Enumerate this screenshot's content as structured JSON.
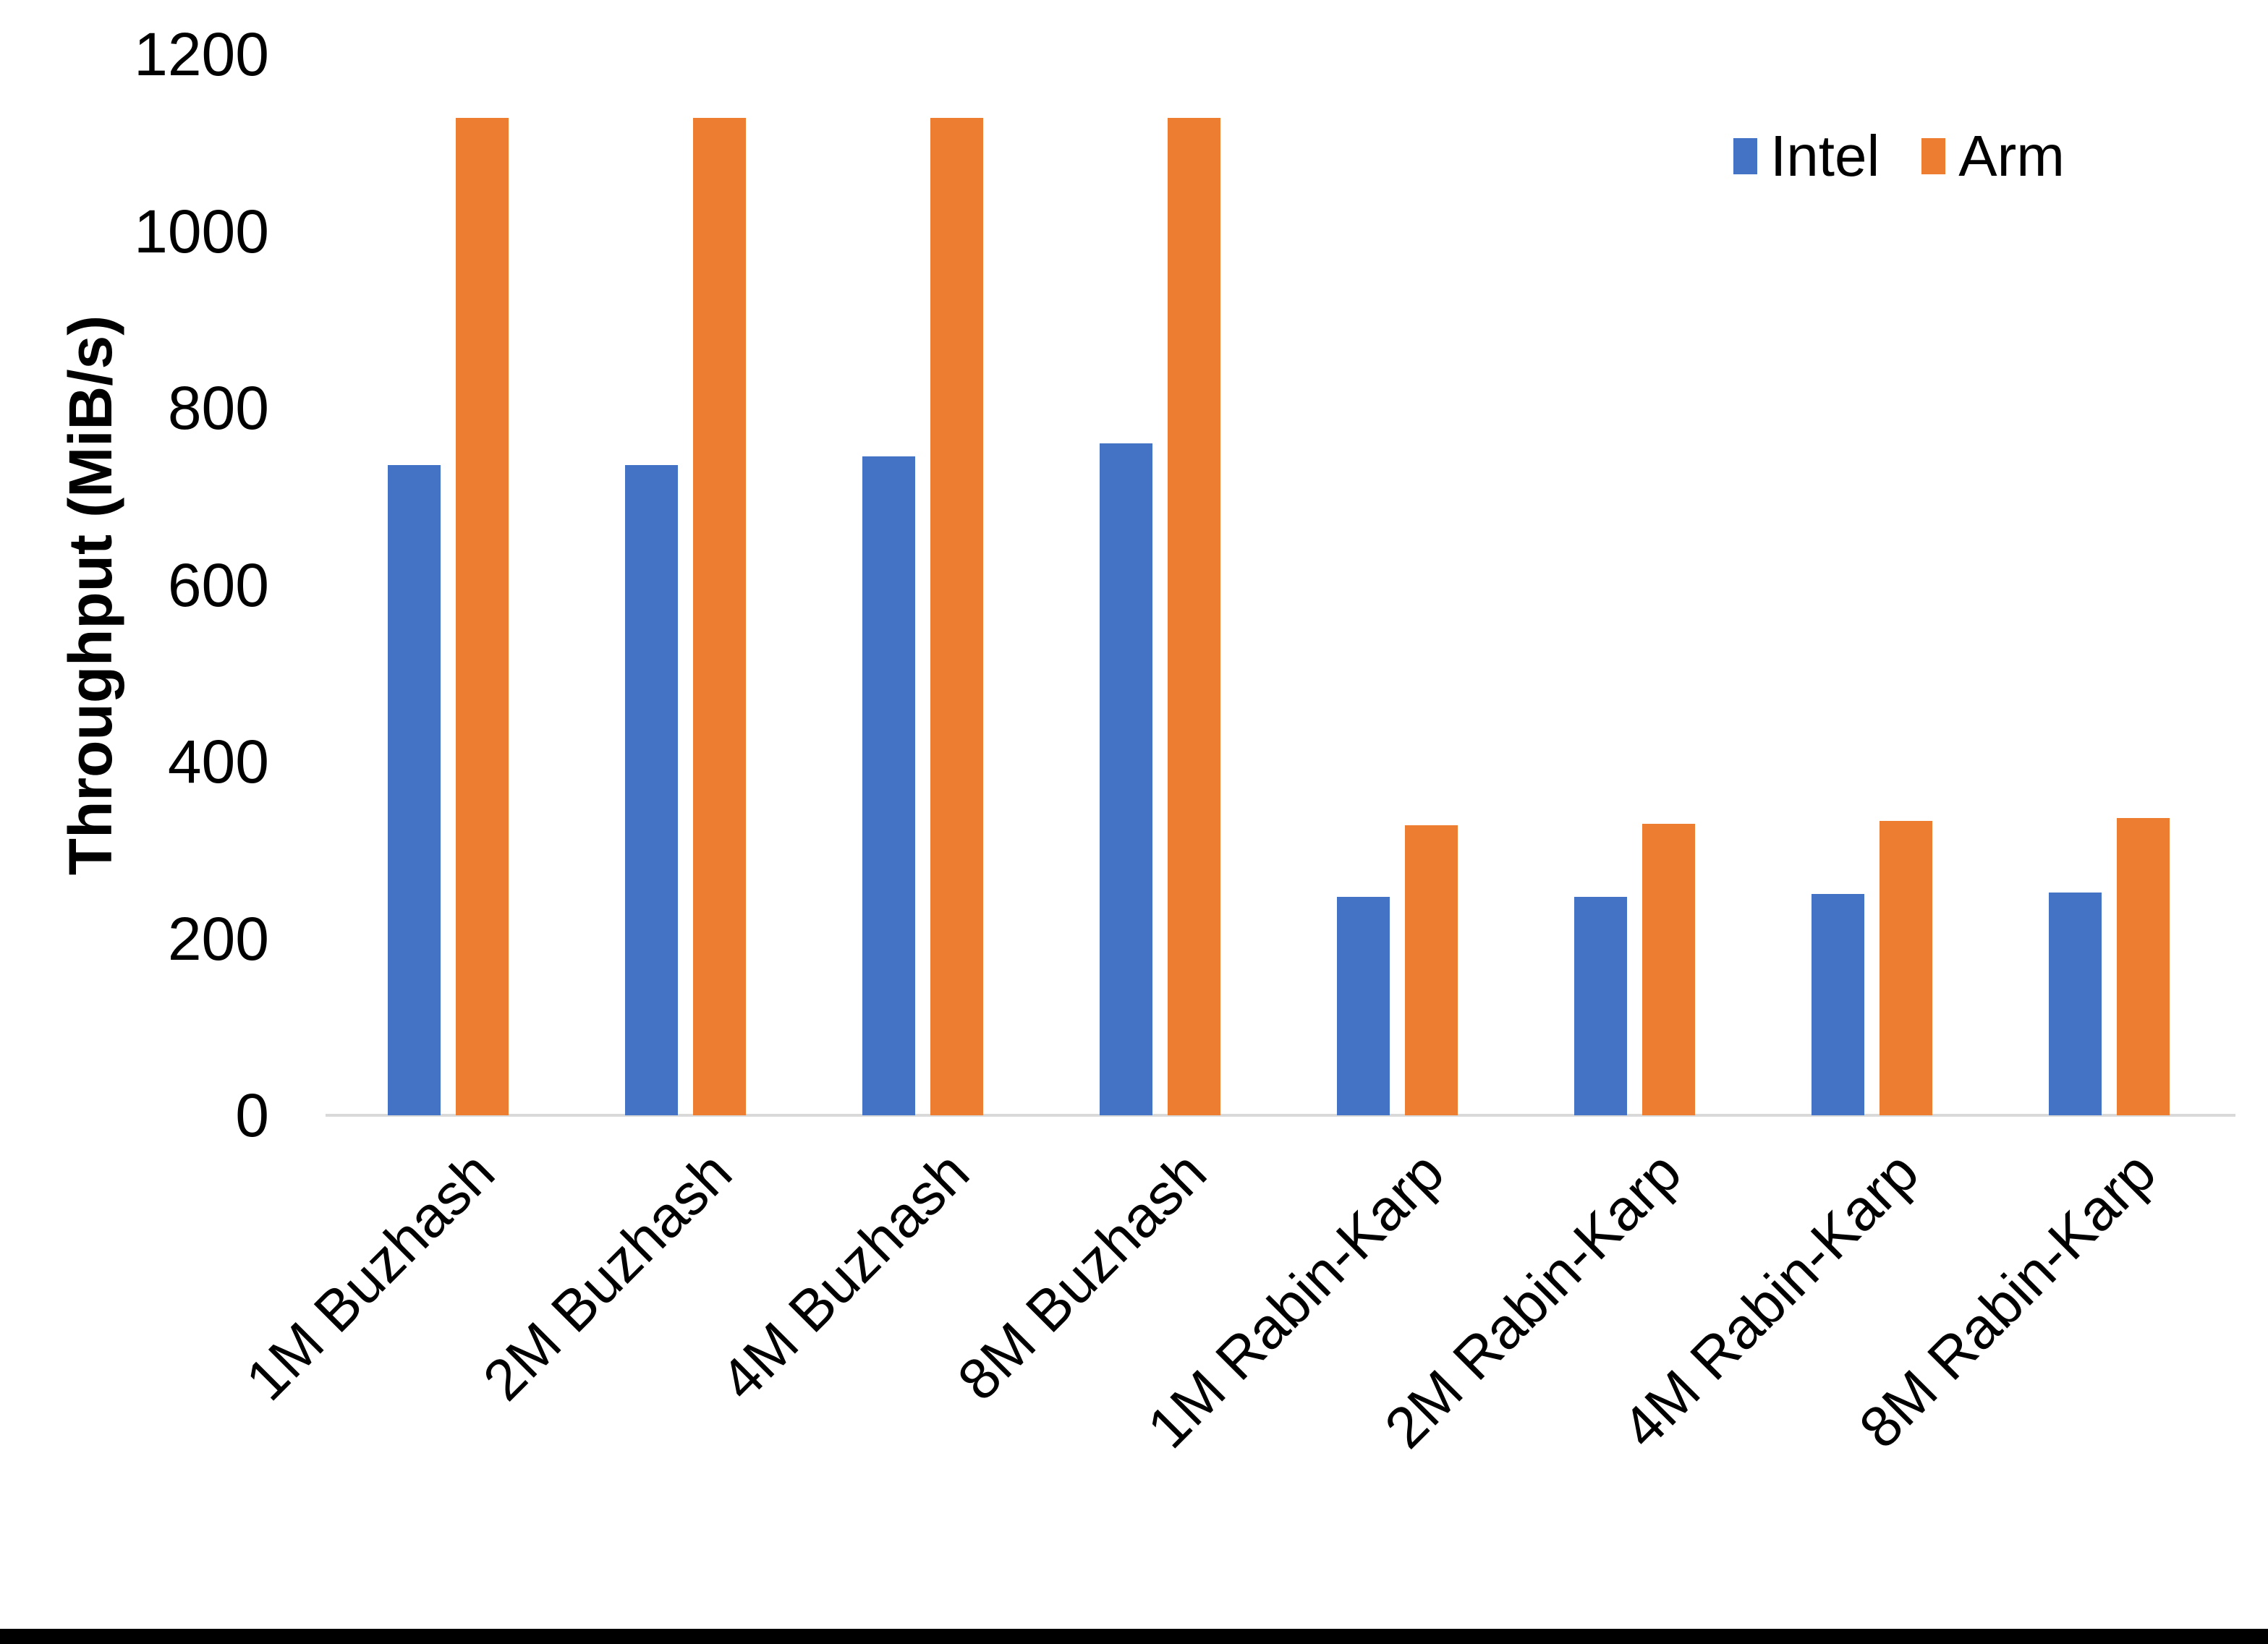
{
  "chart_data": {
    "type": "bar",
    "title": "",
    "xlabel": "",
    "ylabel": "Throughput (MiB/s)",
    "ylim": [
      0,
      1200
    ],
    "yticks": [
      0,
      200,
      400,
      600,
      800,
      1000,
      1200
    ],
    "grid": false,
    "legend_position": "top-right",
    "categories": [
      "1M Buzhash",
      "2M Buzhash",
      "4M Buzhash",
      "8M Buzhash",
      "1M Rabin-Karp",
      "2M Rabin-Karp",
      "4M Rabin-Karp",
      "8M Rabin-Karp"
    ],
    "series": [
      {
        "name": "Intel",
        "color": "#4472C4",
        "values": [
          735,
          735,
          745,
          760,
          247,
          247,
          250,
          252
        ]
      },
      {
        "name": "Arm",
        "color": "#ED7D31",
        "values": [
          1128,
          1128,
          1128,
          1128,
          328,
          330,
          333,
          336
        ]
      }
    ],
    "axis_line_color": "#d9d9d9",
    "text_color": "#000000"
  }
}
